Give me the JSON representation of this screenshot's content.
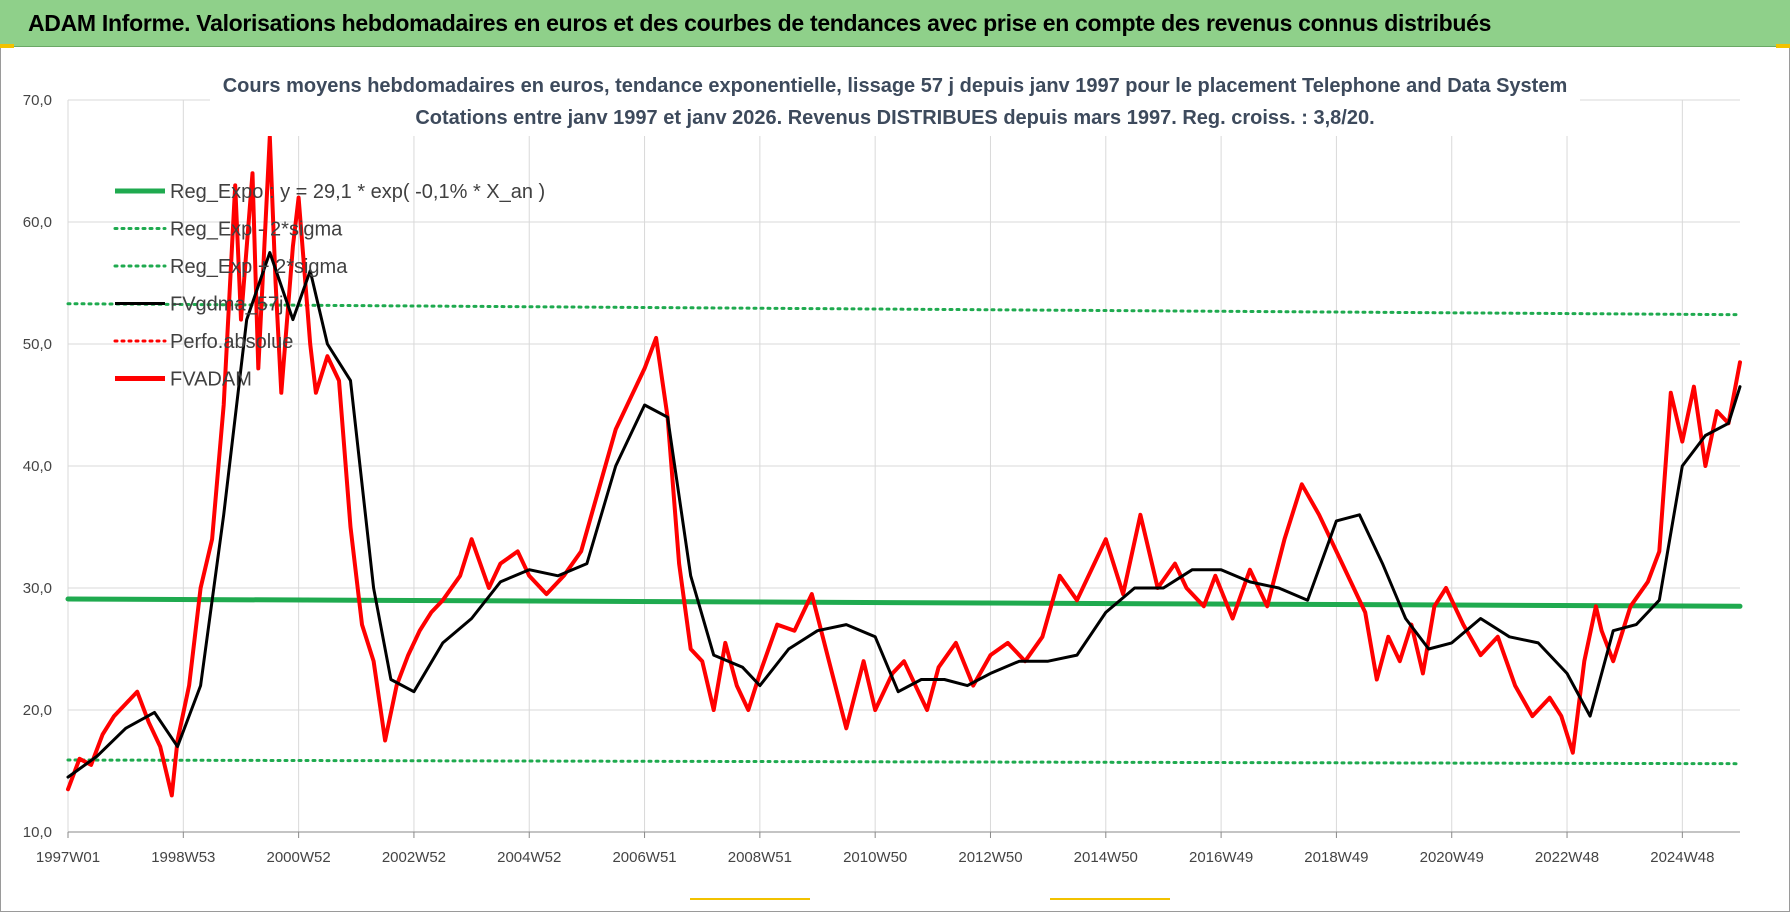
{
  "banner": {
    "text": "ADAM Informe. Valorisations hebdomadaires en euros et des courbes de tendances avec prise en compte des revenus connus distribués"
  },
  "colors": {
    "banner_bg": "#8fd08a",
    "reg_green": "#1faa4f",
    "fvadam_red": "#ff0000",
    "smooth_black": "#000000",
    "grid": "#d9d9d9"
  },
  "chart_data": {
    "type": "line",
    "title": "Cours moyens hebdomadaires en euros, tendance exponentielle, lissage 57 j depuis janv 1997  pour le placement Telephone and Data System",
    "subtitle": "Cotations entre janv 1997 et janv 2026. Revenus DISTRIBUES depuis mars 1997.  Reg. croiss. : 3,8/20.",
    "xlabel": "",
    "ylabel": "",
    "ylim": [
      10,
      70
    ],
    "y_ticks": [
      "10,0",
      "20,0",
      "30,0",
      "40,0",
      "50,0",
      "60,0",
      "70,0"
    ],
    "x_range": [
      1997.0,
      2026.0
    ],
    "x_ticks": [
      {
        "label": "1997W01",
        "x": 1997.0
      },
      {
        "label": "1998W53",
        "x": 1999.0
      },
      {
        "label": "2000W52",
        "x": 2001.0
      },
      {
        "label": "2002W52",
        "x": 2003.0
      },
      {
        "label": "2004W52",
        "x": 2005.0
      },
      {
        "label": "2006W51",
        "x": 2007.0
      },
      {
        "label": "2008W51",
        "x": 2009.0
      },
      {
        "label": "2010W50",
        "x": 2011.0
      },
      {
        "label": "2012W50",
        "x": 2013.0
      },
      {
        "label": "2014W50",
        "x": 2015.0
      },
      {
        "label": "2016W49",
        "x": 2017.0
      },
      {
        "label": "2018W49",
        "x": 2019.0
      },
      {
        "label": "2020W49",
        "x": 2021.0
      },
      {
        "label": "2022W48",
        "x": 2023.0
      },
      {
        "label": "2024W48",
        "x": 2025.0
      }
    ],
    "grid": "horizontal and vertical",
    "legend": "top-left",
    "series": [
      {
        "name": "Reg_Expo : y = 29,1 * exp( -0,1% *  X_an )",
        "style": "solid",
        "color": "#1faa4f",
        "width": 5,
        "x": [
          1997.0,
          2026.0
        ],
        "y": [
          29.1,
          28.5
        ]
      },
      {
        "name": "Reg_Exp - 2*sigma",
        "style": "dotted",
        "color": "#1faa4f",
        "width": 3,
        "x": [
          1997.0,
          2026.0
        ],
        "y": [
          15.9,
          15.6
        ]
      },
      {
        "name": "Reg_Exp + 2*sigma",
        "style": "dotted",
        "color": "#1faa4f",
        "width": 3,
        "x": [
          1997.0,
          2026.0
        ],
        "y": [
          53.3,
          52.4
        ]
      },
      {
        "name": "FVgdma_57j",
        "style": "solid",
        "color": "#000000",
        "width": 3,
        "x": [
          1997.0,
          1997.5,
          1998.0,
          1998.5,
          1998.9,
          1999.3,
          1999.7,
          2000.1,
          2000.5,
          2000.9,
          2001.2,
          2001.5,
          2001.9,
          2002.3,
          2002.6,
          2003.0,
          2003.5,
          2004.0,
          2004.5,
          2005.0,
          2005.5,
          2006.0,
          2006.5,
          2007.0,
          2007.4,
          2007.8,
          2008.2,
          2008.7,
          2009.0,
          2009.5,
          2010.0,
          2010.5,
          2011.0,
          2011.4,
          2011.8,
          2012.2,
          2012.6,
          2013.0,
          2013.5,
          2014.0,
          2014.5,
          2015.0,
          2015.5,
          2016.0,
          2016.5,
          2017.0,
          2017.5,
          2018.0,
          2018.5,
          2019.0,
          2019.4,
          2019.8,
          2020.2,
          2020.6,
          2021.0,
          2021.5,
          2022.0,
          2022.5,
          2023.0,
          2023.4,
          2023.8,
          2024.2,
          2024.6,
          2025.0,
          2025.4,
          2025.8,
          2026.0
        ],
        "y": [
          14.5,
          16.2,
          18.5,
          19.8,
          17.0,
          22.0,
          36.0,
          52.0,
          57.5,
          52.0,
          56.0,
          50.0,
          47.0,
          30.0,
          22.5,
          21.5,
          25.5,
          27.5,
          30.5,
          31.5,
          31.0,
          32.0,
          40.0,
          45.0,
          44.0,
          31.0,
          24.5,
          23.5,
          22.0,
          25.0,
          26.5,
          27.0,
          26.0,
          21.5,
          22.5,
          22.5,
          22.0,
          23.0,
          24.0,
          24.0,
          24.5,
          28.0,
          30.0,
          30.0,
          31.5,
          31.5,
          30.5,
          30.0,
          29.0,
          35.5,
          36.0,
          32.0,
          27.5,
          25.0,
          25.5,
          27.5,
          26.0,
          25.5,
          23.0,
          19.5,
          26.5,
          27.0,
          29.0,
          40.0,
          42.5,
          43.5,
          46.5
        ]
      },
      {
        "name": "Perfo.absolue",
        "style": "dotted",
        "color": "#ff0000",
        "width": 2,
        "x": [],
        "y": []
      },
      {
        "name": "FVADAM",
        "style": "solid",
        "color": "#ff0000",
        "width": 4,
        "x": [
          1997.0,
          1997.2,
          1997.4,
          1997.6,
          1997.8,
          1998.0,
          1998.2,
          1998.4,
          1998.6,
          1998.8,
          1998.9,
          1999.1,
          1999.3,
          1999.5,
          1999.7,
          1999.9,
          2000.0,
          2000.2,
          2000.3,
          2000.5,
          2000.6,
          2000.7,
          2000.9,
          2001.0,
          2001.2,
          2001.3,
          2001.5,
          2001.7,
          2001.9,
          2002.1,
          2002.3,
          2002.5,
          2002.7,
          2002.9,
          2003.1,
          2003.3,
          2003.5,
          2003.8,
          2004.0,
          2004.3,
          2004.5,
          2004.8,
          2005.0,
          2005.3,
          2005.6,
          2005.9,
          2006.2,
          2006.5,
          2006.8,
          2007.0,
          2007.2,
          2007.4,
          2007.6,
          2007.8,
          2008.0,
          2008.2,
          2008.4,
          2008.6,
          2008.8,
          2009.0,
          2009.3,
          2009.6,
          2009.9,
          2010.2,
          2010.5,
          2010.8,
          2011.0,
          2011.3,
          2011.5,
          2011.7,
          2011.9,
          2012.1,
          2012.4,
          2012.7,
          2013.0,
          2013.3,
          2013.6,
          2013.9,
          2014.2,
          2014.5,
          2014.8,
          2015.0,
          2015.3,
          2015.6,
          2015.9,
          2016.2,
          2016.4,
          2016.7,
          2016.9,
          2017.2,
          2017.5,
          2017.8,
          2018.1,
          2018.4,
          2018.7,
          2019.0,
          2019.1,
          2019.3,
          2019.5,
          2019.7,
          2019.9,
          2020.1,
          2020.3,
          2020.5,
          2020.7,
          2020.9,
          2021.2,
          2021.5,
          2021.8,
          2022.1,
          2022.4,
          2022.7,
          2022.9,
          2023.1,
          2023.3,
          2023.5,
          2023.6,
          2023.8,
          2024.1,
          2024.4,
          2024.6,
          2024.8,
          2025.0,
          2025.2,
          2025.4,
          2025.6,
          2025.8,
          2026.0
        ],
        "y": [
          13.5,
          16.0,
          15.5,
          18.0,
          19.5,
          20.5,
          21.5,
          19.0,
          17.0,
          13.0,
          17.5,
          22.0,
          30.0,
          34.0,
          45.0,
          63.0,
          52.0,
          64.0,
          48.0,
          67.0,
          55.0,
          46.0,
          58.0,
          62.0,
          50.0,
          46.0,
          49.0,
          47.0,
          35.0,
          27.0,
          24.0,
          17.5,
          22.0,
          24.5,
          26.5,
          28.0,
          29.0,
          31.0,
          34.0,
          30.0,
          32.0,
          33.0,
          31.0,
          29.5,
          31.0,
          33.0,
          38.0,
          43.0,
          46.0,
          48.0,
          50.5,
          44.0,
          32.0,
          25.0,
          24.0,
          20.0,
          25.5,
          22.0,
          20.0,
          23.0,
          27.0,
          26.5,
          29.5,
          24.0,
          18.5,
          24.0,
          20.0,
          23.0,
          24.0,
          22.0,
          20.0,
          23.5,
          25.5,
          22.0,
          24.5,
          25.5,
          24.0,
          26.0,
          31.0,
          29.0,
          32.0,
          34.0,
          29.5,
          36.0,
          30.0,
          32.0,
          30.0,
          28.5,
          31.0,
          27.5,
          31.5,
          28.5,
          34.0,
          38.5,
          36.0,
          33.0,
          32.0,
          30.0,
          28.0,
          22.5,
          26.0,
          24.0,
          27.0,
          23.0,
          28.5,
          30.0,
          27.0,
          24.5,
          26.0,
          22.0,
          19.5,
          21.0,
          19.5,
          16.5,
          24.0,
          28.5,
          26.5,
          24.0,
          28.5,
          30.5,
          33.0,
          46.0,
          42.0,
          46.5,
          40.0,
          44.5,
          43.5,
          48.5
        ]
      }
    ]
  }
}
